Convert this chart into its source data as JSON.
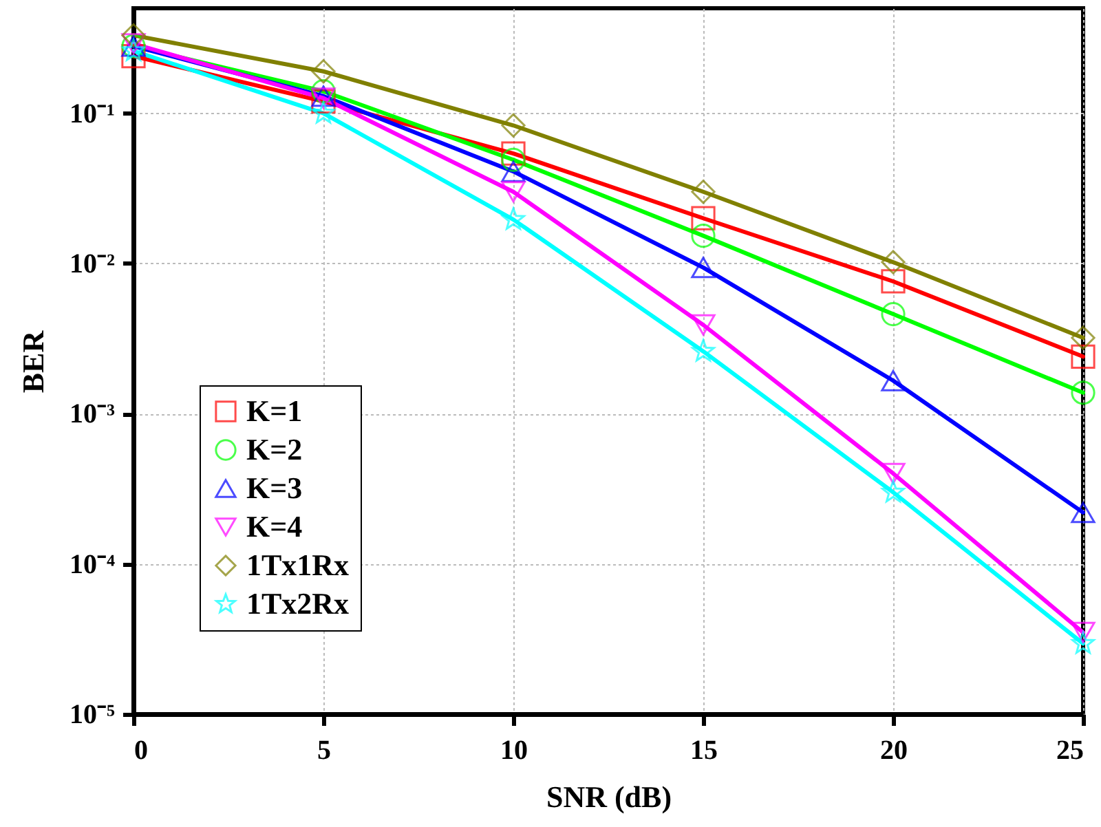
{
  "chart_data": {
    "type": "line",
    "xlabel": "SNR (dB)",
    "ylabel": "BER",
    "x": [
      0,
      5,
      10,
      15,
      20,
      25
    ],
    "series": [
      {
        "name": "K=1",
        "color": "#ff0000",
        "marker": "square",
        "values": [
          0.24,
          0.12,
          0.054,
          0.02,
          0.0076,
          0.0024
        ]
      },
      {
        "name": "K=2",
        "color": "#00ff00",
        "marker": "circle",
        "values": [
          0.28,
          0.14,
          0.049,
          0.0153,
          0.0046,
          0.00138
        ]
      },
      {
        "name": "K=3",
        "color": "#0000ff",
        "marker": "triangle",
        "values": [
          0.28,
          0.13,
          0.041,
          0.0094,
          0.00166,
          0.00022
        ]
      },
      {
        "name": "K=4",
        "color": "#ff00ff",
        "marker": "triangle-down",
        "values": [
          0.29,
          0.126,
          0.03,
          0.0039,
          0.0004,
          3.5e-05
        ]
      },
      {
        "name": "1Tx1Rx",
        "color": "#808000",
        "marker": "diamond",
        "values": [
          0.33,
          0.19,
          0.083,
          0.03,
          0.0102,
          0.0032
        ]
      },
      {
        "name": "1Tx2Rx",
        "color": "#00ffff",
        "marker": "star",
        "values": [
          0.26,
          0.1,
          0.0196,
          0.0026,
          0.0003,
          2.95e-05
        ]
      }
    ],
    "xlim": [
      0,
      25
    ],
    "xticks": [
      0,
      5,
      10,
      15,
      20,
      25
    ],
    "ylim": [
      1e-05,
      0.5
    ],
    "yticks": [
      {
        "value": 1e-05,
        "label": "10⁻⁵"
      },
      {
        "value": 0.0001,
        "label": "10⁻⁴"
      },
      {
        "value": 0.001,
        "label": "10⁻³"
      },
      {
        "value": 0.01,
        "label": "10⁻²"
      },
      {
        "value": 0.1,
        "label": "10⁻¹"
      }
    ],
    "log": true,
    "grid": true,
    "legend": "bottom left",
    "line_style": "solid"
  }
}
